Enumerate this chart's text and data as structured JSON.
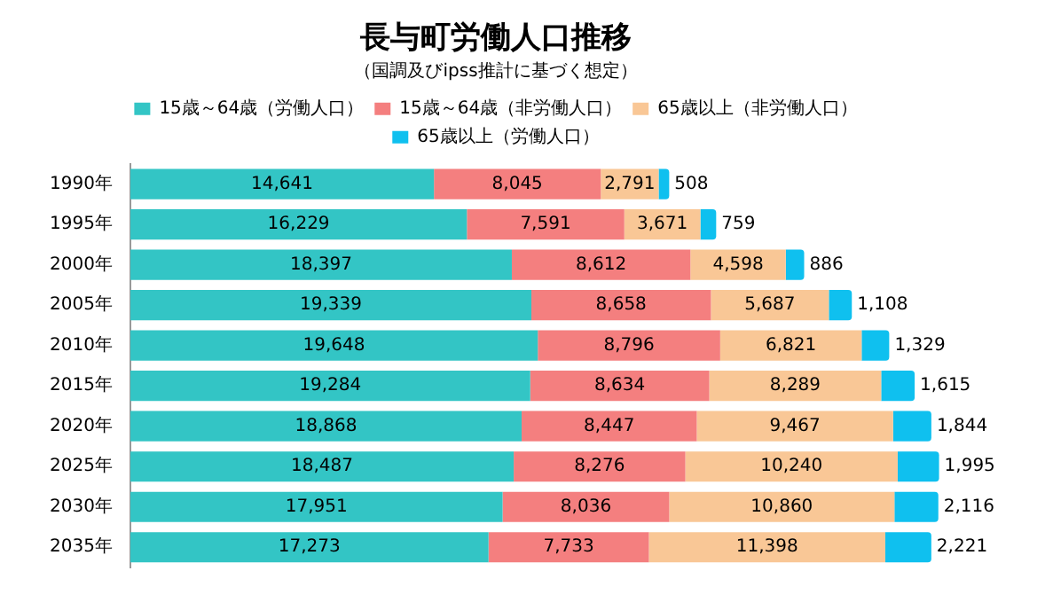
{
  "chart_data": {
    "type": "bar",
    "orientation": "horizontal",
    "stacked": true,
    "title": "長与町労働人口推移",
    "subtitle": "（国調及びipss推計に基づく想定）",
    "categories": [
      "1990年",
      "1995年",
      "2000年",
      "2005年",
      "2010年",
      "2015年",
      "2020年",
      "2025年",
      "2030年",
      "2035年"
    ],
    "series": [
      {
        "name": "15歳～64歳（労働人口）",
        "color": "#33c5c5",
        "values": [
          14641,
          16229,
          18397,
          19339,
          19648,
          19284,
          18868,
          18487,
          17951,
          17273
        ],
        "value_labels": [
          "14,641",
          "16,229",
          "18,397",
          "19,339",
          "19,648",
          "19,284",
          "18,868",
          "18,487",
          "17,951",
          "17,273"
        ]
      },
      {
        "name": "15歳～64歳（非労働人口）",
        "color": "#f47f7f",
        "values": [
          8045,
          7591,
          8612,
          8658,
          8796,
          8634,
          8447,
          8276,
          8036,
          7733
        ],
        "value_labels": [
          "8,045",
          "7,591",
          "8,612",
          "8,658",
          "8,796",
          "8,634",
          "8,447",
          "8,276",
          "8,036",
          "7,733"
        ]
      },
      {
        "name": "65歳以上（非労働人口）",
        "color": "#f9c796",
        "values": [
          2791,
          3671,
          4598,
          5687,
          6821,
          8289,
          9467,
          10240,
          10860,
          11398
        ],
        "value_labels": [
          "2,791",
          "3,671",
          "4,598",
          "5,687",
          "6,821",
          "8,289",
          "9,467",
          "10,240",
          "10,860",
          "11,398"
        ]
      },
      {
        "name": "65歳以上（労働人口）",
        "color": "#0fc0ef",
        "values": [
          508,
          759,
          886,
          1108,
          1329,
          1615,
          1844,
          1995,
          2116,
          2221
        ],
        "value_labels": [
          "508",
          "759",
          "886",
          "1,108",
          "1,329",
          "1,615",
          "1,844",
          "1,995",
          "2,116",
          "2,221"
        ]
      }
    ],
    "legend": "top",
    "grid": false
  }
}
